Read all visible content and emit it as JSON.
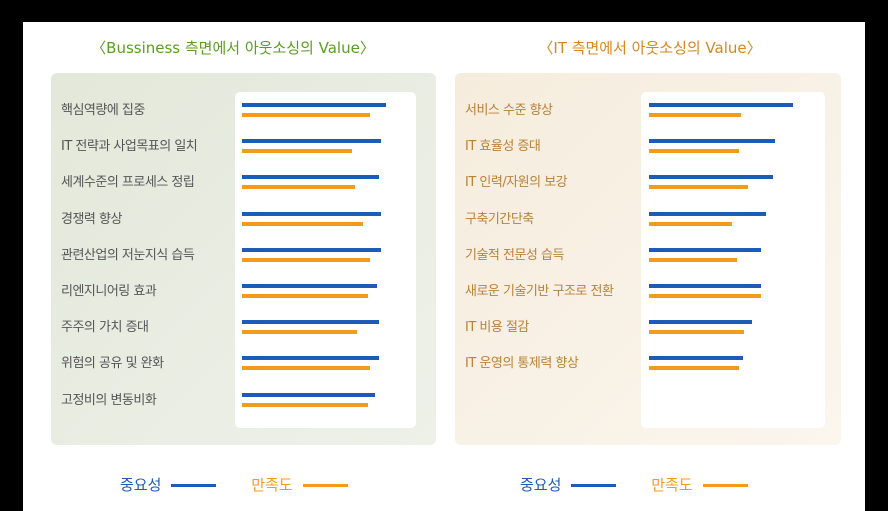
{
  "chart_data": [
    {
      "type": "bar",
      "orientation": "horizontal",
      "title": "〈Bussiness 측면에서 아웃소싱의 Value〉",
      "categories": [
        "핵심역량에 집중",
        "IT 전략과 사업목표의 일치",
        "세계수준의 프로세스 정립",
        "경쟁력 향상",
        "관련산업의 저눈지식 습득",
        "리엔지니어링 효과",
        "주주의 가치 증대",
        "위험의 공유 및 완화",
        "고정비의 변동비화"
      ],
      "series": [
        {
          "name": "중요성",
          "color": "#1d5bb8",
          "values": [
            4.0,
            3.85,
            3.8,
            3.85,
            3.85,
            3.75,
            3.8,
            3.8,
            3.7
          ]
        },
        {
          "name": "만족도",
          "color": "#f39b1c",
          "values": [
            3.55,
            3.05,
            3.15,
            3.35,
            3.55,
            3.5,
            3.2,
            3.55,
            3.5
          ]
        }
      ],
      "xlim": [
        0,
        5
      ]
    },
    {
      "type": "bar",
      "orientation": "horizontal",
      "title": "〈IT 측면에서 아웃소싱의 Value〉",
      "categories": [
        "서비스 수준 향상",
        "IT 효율성 증대",
        "IT 인력/자원의 보강",
        "구축기간단축",
        "기술적 전문성 습득",
        "새로운 기술기반 구조로 전환",
        "IT 비용 절감",
        "IT 운영의 통제력 향상"
      ],
      "series": [
        {
          "name": "중요성",
          "color": "#1d5bb8",
          "values": [
            4.0,
            3.5,
            3.45,
            3.25,
            3.1,
            3.1,
            2.85,
            2.6
          ]
        },
        {
          "name": "만족도",
          "color": "#f39b1c",
          "values": [
            2.55,
            2.5,
            2.75,
            2.3,
            2.45,
            3.1,
            2.65,
            2.5
          ]
        }
      ],
      "xlim": [
        0,
        5
      ]
    }
  ]
}
